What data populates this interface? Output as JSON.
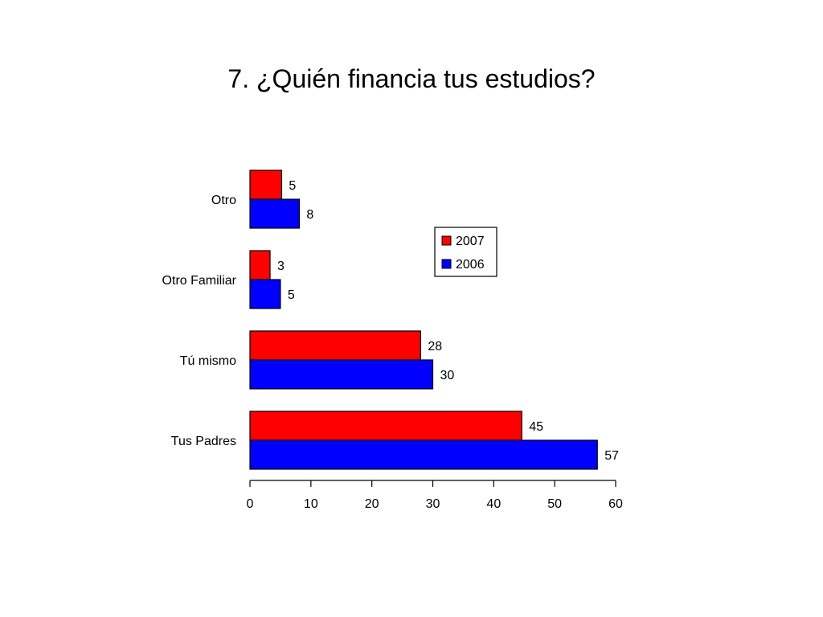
{
  "chart_data": {
    "type": "bar",
    "orientation": "horizontal",
    "title": "7. ¿Quién financia tus estudios?",
    "xlabel": "",
    "ylabel": "",
    "categories": [
      "Otro",
      "Otro Familiar",
      "Tú mismo",
      "Tus Padres"
    ],
    "series": [
      {
        "name": "2007",
        "color": "#ff0000",
        "values": [
          5.2,
          3.3,
          28,
          44.6
        ],
        "labels": [
          "5",
          "3",
          "28",
          "45"
        ]
      },
      {
        "name": "2006",
        "color": "#0000ff",
        "values": [
          8.1,
          5,
          30,
          57
        ],
        "labels": [
          "8",
          "5",
          "30",
          "57"
        ]
      }
    ],
    "xlim": [
      0,
      60
    ],
    "xticks": [
      "0",
      "10",
      "20",
      "30",
      "40",
      "50",
      "60"
    ],
    "grid": false,
    "legend_position": "right"
  }
}
